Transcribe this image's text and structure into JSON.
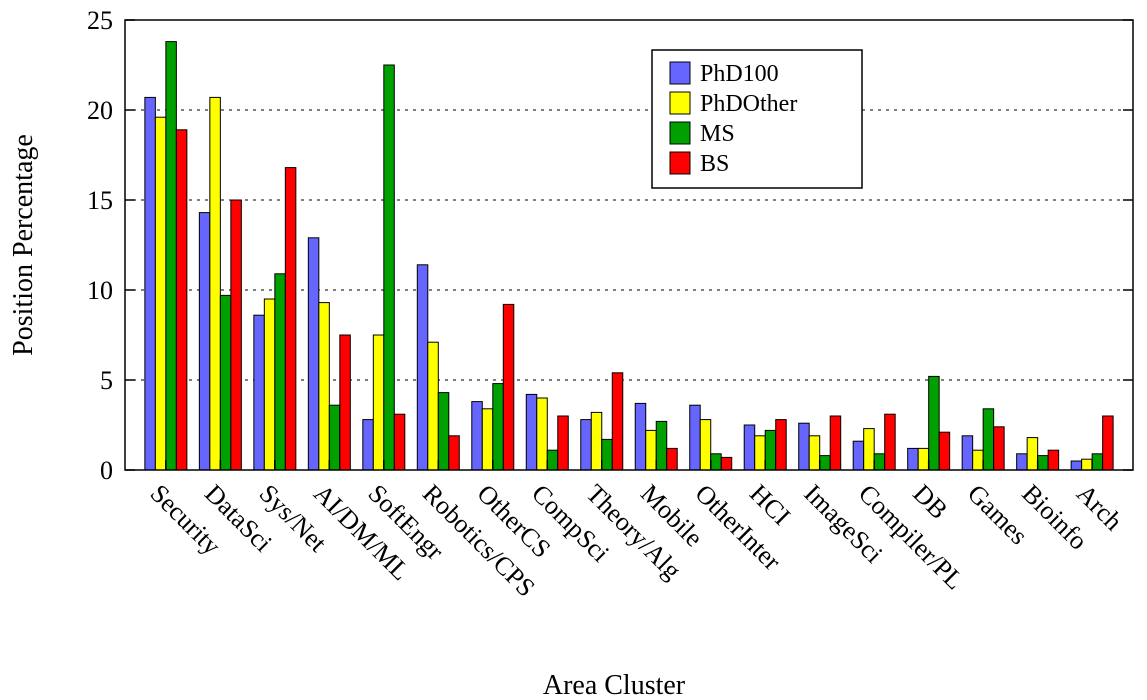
{
  "chart_data": {
    "type": "bar",
    "title": "",
    "xlabel": "Area Cluster",
    "ylabel": "Position Percentage",
    "ylim": [
      0,
      25
    ],
    "yticks": [
      0,
      5,
      10,
      15,
      20,
      25
    ],
    "grid": "horizontal-dashed",
    "legend_position": "top-right",
    "categories": [
      "Security",
      "DataSci",
      "Sys/Net",
      "AI/DM/ML",
      "SoftEngr",
      "Robotics/CPS",
      "OtherCS",
      "CompSci",
      "Theory/Alg",
      "Mobile",
      "OtherInter",
      "HCI",
      "ImageSci",
      "Compiler/PL",
      "DB",
      "Games",
      "Bioinfo",
      "Arch"
    ],
    "series": [
      {
        "name": "PhD100",
        "color": "#6666ff",
        "values": [
          20.7,
          14.3,
          8.6,
          12.9,
          2.8,
          11.4,
          3.8,
          4.2,
          2.8,
          3.7,
          3.6,
          2.5,
          2.6,
          1.6,
          1.2,
          1.9,
          0.9,
          0.5
        ]
      },
      {
        "name": "PhDOther",
        "color": "#ffff00",
        "values": [
          19.6,
          20.7,
          9.5,
          9.3,
          7.5,
          7.1,
          3.4,
          4.0,
          3.2,
          2.2,
          2.8,
          1.9,
          1.9,
          2.3,
          1.2,
          1.1,
          1.8,
          0.6
        ]
      },
      {
        "name": "MS",
        "color": "#00a000",
        "values": [
          23.8,
          9.7,
          10.9,
          3.6,
          22.5,
          4.3,
          4.8,
          1.1,
          1.7,
          2.7,
          0.9,
          2.2,
          0.8,
          0.9,
          5.2,
          3.4,
          0.8,
          0.9
        ]
      },
      {
        "name": "BS",
        "color": "#ff0000",
        "values": [
          18.9,
          15.0,
          16.8,
          7.5,
          3.1,
          1.9,
          9.2,
          3.0,
          5.4,
          1.2,
          0.7,
          2.8,
          3.0,
          3.1,
          2.1,
          2.4,
          1.1,
          3.0
        ]
      }
    ]
  }
}
